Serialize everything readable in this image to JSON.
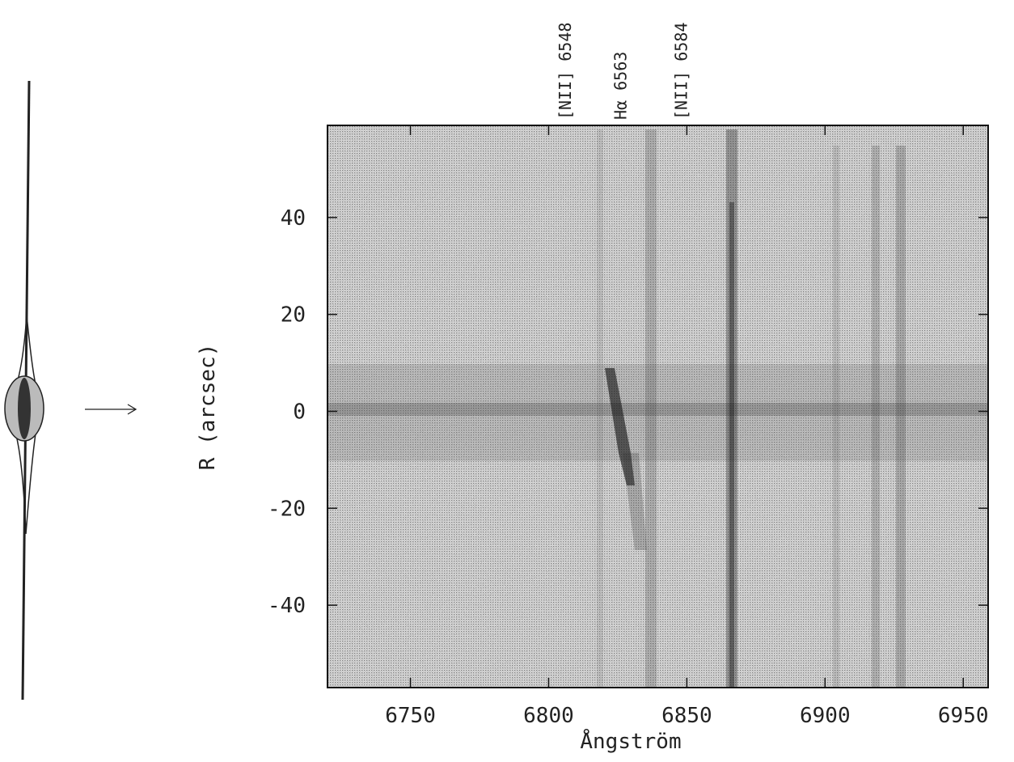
{
  "chart_data": {
    "type": "image",
    "xlabel": "Ångström",
    "ylabel": "R (arcsec)",
    "xlim": [
      6720,
      6959
    ],
    "ylim": [
      -57,
      59
    ],
    "xticks": [
      6750,
      6800,
      6850,
      6900,
      6950
    ],
    "yticks": [
      -40,
      -20,
      0,
      20,
      40
    ],
    "annotations": [
      {
        "text": "[NII] 6548",
        "x": 6806
      },
      {
        "text": "Hα 6563",
        "x": 6826
      },
      {
        "text": "[NII] 6584",
        "x": 6848
      }
    ]
  }
}
